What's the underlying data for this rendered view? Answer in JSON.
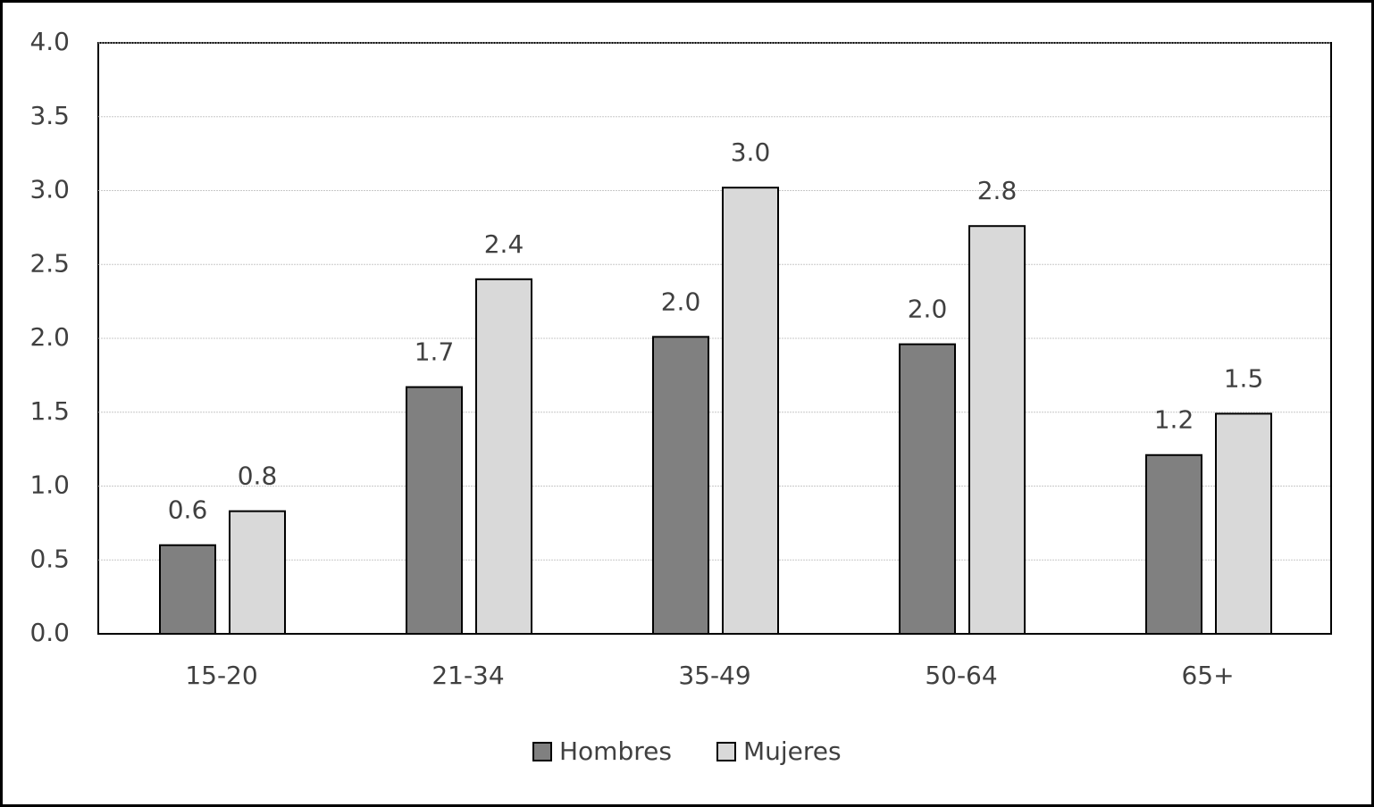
{
  "chart_data": {
    "type": "bar",
    "categories": [
      "15-20",
      "21-34",
      "35-49",
      "50-64",
      "65+"
    ],
    "series": [
      {
        "name": "Hombres",
        "color": "#808080",
        "values": [
          0.6,
          1.67,
          2.01,
          1.96,
          1.21
        ],
        "value_labels": [
          "0.6",
          "1.7",
          "2.0",
          "2.0",
          "1.2"
        ]
      },
      {
        "name": "Mujeres",
        "color": "#d9d9d9",
        "values": [
          0.83,
          2.4,
          3.02,
          2.76,
          1.49
        ],
        "value_labels": [
          "0.8",
          "2.4",
          "3.0",
          "2.8",
          "1.5"
        ]
      }
    ],
    "ylim": [
      0,
      4
    ],
    "yticks": [
      {
        "value": 0,
        "label": "0.0"
      },
      {
        "value": 0.5,
        "label": "0.5"
      },
      {
        "value": 1,
        "label": "1.0"
      },
      {
        "value": 1.5,
        "label": "1.5"
      },
      {
        "value": 2,
        "label": "2.0"
      },
      {
        "value": 2.5,
        "label": "2.5"
      },
      {
        "value": 3,
        "label": "3.0"
      },
      {
        "value": 3.5,
        "label": "3.5"
      },
      {
        "value": 4,
        "label": "4.0"
      }
    ],
    "grid": true,
    "legend": "bottom"
  }
}
